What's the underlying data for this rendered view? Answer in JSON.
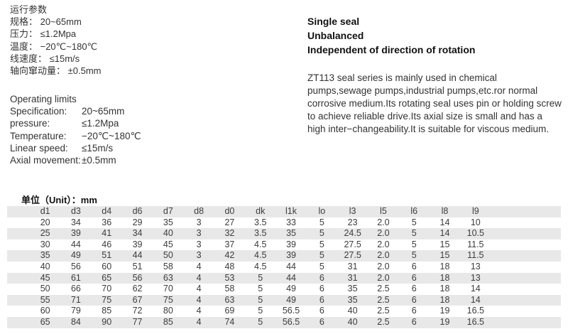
{
  "colors": {
    "stripe": "#e8e8e8",
    "text": "#333333"
  },
  "cn_params": {
    "title": "运行参数",
    "lines": [
      "规格： 20~65mm",
      "压力： ≤1.2Mpa",
      "温度： −20℃~180℃",
      "线速度： ≤15m/s",
      "轴向窜动量： ±0.5mm"
    ]
  },
  "operating_limits": {
    "title": "Operating limits",
    "rows": [
      {
        "label": "Specification:",
        "value": "20~65mm"
      },
      {
        "label": "pressure:",
        "value": "≤1.2Mpa"
      },
      {
        "label": "Temperature:",
        "value": "−20℃~180℃"
      },
      {
        "label": "Linear speed:",
        "value": "≤15m/s"
      },
      {
        "label": "Axial movement:",
        "value": "±0.5mm"
      }
    ]
  },
  "features": [
    "Single seal",
    "Unbalanced",
    "Independent of direction of rotation"
  ],
  "description": "ZT113 seal series is mainly used in chemical pumps,sewage pumps,industrial pumps,etc.ror normal corrosive medium.Its rotating seal uses pin or holding screw to achieve reliable drive.Its axial size is small and has a high inter−changeability.It is suitable for viscous medium.",
  "unit_label": "单位（Unit）：mm",
  "table": {
    "headers": [
      "d1",
      "d3",
      "d4",
      "d6",
      "d7",
      "d8",
      "d0",
      "dk",
      "l1k",
      "lo",
      "l3",
      "l5",
      "l6",
      "l8",
      "l9"
    ],
    "rows": [
      [
        "20",
        "34",
        "36",
        "29",
        "35",
        "3",
        "27",
        "3.5",
        "33",
        "5",
        "23",
        "2.0",
        "5",
        "14",
        "10"
      ],
      [
        "25",
        "39",
        "41",
        "34",
        "40",
        "3",
        "32",
        "3.5",
        "35",
        "5",
        "24.5",
        "2.0",
        "5",
        "14",
        "10.5"
      ],
      [
        "30",
        "44",
        "46",
        "39",
        "45",
        "3",
        "37",
        "4.5",
        "39",
        "5",
        "27.5",
        "2.0",
        "5",
        "15",
        "11.5"
      ],
      [
        "35",
        "49",
        "51",
        "44",
        "50",
        "3",
        "42",
        "4.5",
        "39",
        "5",
        "27.5",
        "2.0",
        "5",
        "15",
        "11.5"
      ],
      [
        "40",
        "56",
        "60",
        "51",
        "58",
        "4",
        "48",
        "4.5",
        "44",
        "5",
        "31",
        "2.0",
        "6",
        "18",
        "13"
      ],
      [
        "45",
        "61",
        "65",
        "56",
        "63",
        "4",
        "53",
        "5",
        "44",
        "6",
        "31",
        "2.0",
        "6",
        "18",
        "13"
      ],
      [
        "50",
        "66",
        "70",
        "62",
        "70",
        "4",
        "58",
        "5",
        "49",
        "6",
        "35",
        "2.5",
        "6",
        "18",
        "14"
      ],
      [
        "55",
        "71",
        "75",
        "67",
        "75",
        "4",
        "63",
        "5",
        "49",
        "6",
        "35",
        "2.5",
        "6",
        "18",
        "14"
      ],
      [
        "60",
        "79",
        "85",
        "72",
        "80",
        "4",
        "69",
        "5",
        "56.5",
        "6",
        "40",
        "2.5",
        "6",
        "19",
        "16.5"
      ],
      [
        "65",
        "84",
        "90",
        "77",
        "85",
        "4",
        "74",
        "5",
        "56.5",
        "6",
        "40",
        "2.5",
        "6",
        "19",
        "16.5"
      ]
    ]
  }
}
